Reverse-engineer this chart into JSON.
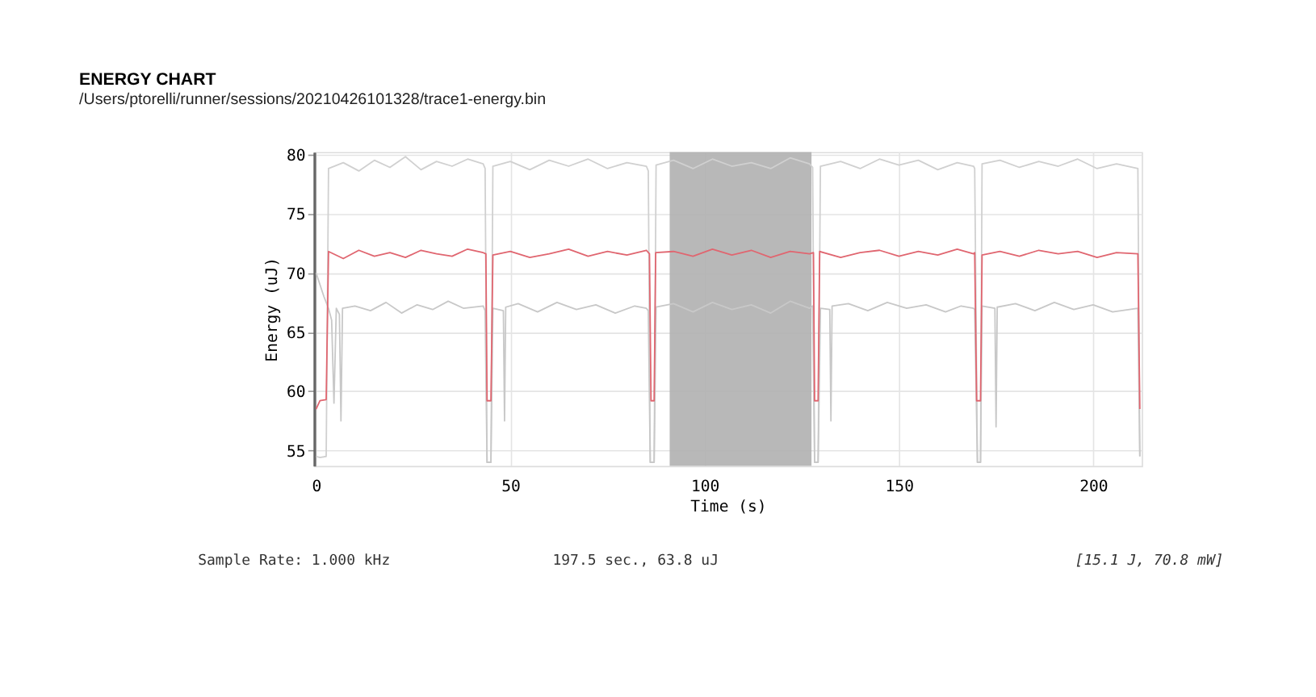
{
  "chart_data": {
    "type": "line",
    "title": "ENERGY CHART",
    "subtitle": "/Users/ptorelli/runner/sessions/20210426101328/trace1-energy.bin",
    "xlabel": "Time (s)",
    "ylabel": "Energy (uJ)",
    "xlim": [
      -0.5,
      212.5
    ],
    "ylim": [
      53.7,
      80.2
    ],
    "xticks": [
      0,
      50,
      100,
      150,
      200
    ],
    "yticks": [
      55,
      60,
      65,
      70,
      75,
      80
    ],
    "grid": true,
    "bands": [
      {
        "axis": "x",
        "from": 91,
        "to": 127.5,
        "color": "#b0b0b0"
      }
    ],
    "annotations": [
      "Sample Rate: 1.000 kHz",
      "197.5 sec., 63.8 uJ",
      "[15.1 J, 70.8 mW]"
    ],
    "series": [
      {
        "color": "#d0d0d0",
        "x": [
          0,
          1,
          2.6,
          3.2,
          7,
          11,
          15,
          19,
          23,
          27,
          31,
          35,
          39,
          43,
          43.5,
          44,
          45,
          45.5,
          50,
          55,
          60,
          65,
          70,
          75,
          80,
          85,
          85.5,
          86,
          87,
          87.5,
          92,
          97,
          102,
          107,
          112,
          117,
          122,
          127,
          127.8,
          128.3,
          129.2,
          129.8,
          135,
          140,
          145,
          150,
          155,
          160,
          165,
          169.2,
          169.5,
          170.2,
          171,
          171.4,
          176,
          181,
          186,
          191,
          196,
          201,
          206,
          211.5,
          212
        ],
        "values": [
          54.5,
          54.4,
          54.5,
          78.8,
          79.3,
          78.6,
          79.5,
          78.9,
          79.8,
          78.7,
          79.4,
          79.0,
          79.6,
          79.2,
          78.8,
          54,
          54,
          79,
          79.4,
          78.7,
          79.5,
          79.0,
          79.6,
          78.8,
          79.3,
          79.0,
          78.6,
          54,
          54,
          79.1,
          79.5,
          78.8,
          79.6,
          79.0,
          79.3,
          78.8,
          79.7,
          79.2,
          78.9,
          54,
          54,
          79.0,
          79.4,
          78.8,
          79.6,
          79.1,
          79.5,
          78.7,
          79.3,
          79.0,
          78.8,
          54,
          54,
          79.2,
          79.5,
          78.9,
          79.4,
          79.0,
          79.6,
          78.8,
          79.2,
          78.8,
          54.5
        ]
      },
      {
        "color": "#c8c8c8",
        "x": [
          0,
          2,
          3.2,
          4,
          4.6,
          5.2,
          6,
          6.4,
          6.8,
          10,
          14,
          18,
          22,
          26,
          30,
          34,
          38,
          43,
          43.5,
          44,
          45,
          45.5,
          48.2,
          48.5,
          48.8,
          52,
          57,
          62,
          67,
          72,
          77,
          82,
          85,
          85.5,
          86,
          87,
          87.5,
          92,
          97,
          102,
          107,
          112,
          117,
          122,
          127,
          127.8,
          128.3,
          129.2,
          129.8,
          132.2,
          132.5,
          132.8,
          137,
          142,
          147,
          152,
          157,
          162,
          166,
          169.2,
          169.5,
          170.2,
          171,
          171.4,
          174.7,
          175,
          175.3,
          180,
          185,
          190,
          195,
          200,
          205,
          211.5,
          212
        ],
        "values": [
          70,
          68,
          67,
          66,
          59,
          67,
          66.5,
          57.5,
          67,
          67.2,
          66.8,
          67.5,
          66.6,
          67.3,
          66.9,
          67.6,
          67.0,
          67.2,
          66.8,
          54,
          54,
          67.0,
          66.8,
          57.5,
          67.1,
          67.4,
          66.7,
          67.5,
          66.9,
          67.3,
          66.6,
          67.2,
          67.0,
          66.8,
          54,
          54,
          67.1,
          67.4,
          66.7,
          67.5,
          66.9,
          67.3,
          66.6,
          67.6,
          67.0,
          67.2,
          54,
          54,
          67.0,
          66.9,
          57.5,
          67.2,
          67.4,
          66.8,
          67.5,
          67.0,
          67.3,
          66.7,
          67.2,
          67.0,
          66.9,
          54,
          54,
          67.2,
          67.0,
          57,
          67.1,
          67.4,
          66.8,
          67.5,
          66.9,
          67.3,
          66.7,
          67.0,
          54.5
        ]
      },
      {
        "color": "#e06670",
        "x": [
          0,
          1,
          2.6,
          3.2,
          7,
          11,
          15,
          19,
          23,
          27,
          31,
          35,
          39,
          43,
          43.7,
          44,
          45,
          45.5,
          50,
          55,
          60,
          65,
          70,
          75,
          80,
          85,
          85.8,
          86.2,
          87,
          87.4,
          92,
          97,
          102,
          107,
          112,
          117,
          122,
          127,
          128,
          128.3,
          129.2,
          129.6,
          135,
          140,
          145,
          150,
          155,
          160,
          165,
          169.2,
          169.5,
          170,
          171,
          171.4,
          176,
          181,
          186,
          191,
          196,
          201,
          206,
          211.5,
          212
        ],
        "values": [
          58.5,
          59.2,
          59.3,
          71.8,
          71.2,
          71.9,
          71.4,
          71.7,
          71.3,
          71.9,
          71.6,
          71.4,
          72.0,
          71.7,
          71.6,
          59.2,
          59.2,
          71.5,
          71.8,
          71.3,
          71.6,
          72.0,
          71.4,
          71.8,
          71.5,
          71.9,
          71.6,
          59.2,
          59.2,
          71.7,
          71.8,
          71.4,
          72.0,
          71.5,
          71.9,
          71.3,
          71.8,
          71.6,
          71.7,
          59.2,
          59.2,
          71.8,
          71.3,
          71.7,
          71.9,
          71.4,
          71.8,
          71.5,
          72.0,
          71.6,
          71.7,
          59.2,
          59.2,
          71.5,
          71.8,
          71.4,
          71.9,
          71.6,
          71.8,
          71.3,
          71.7,
          71.6,
          58.5
        ]
      }
    ]
  }
}
